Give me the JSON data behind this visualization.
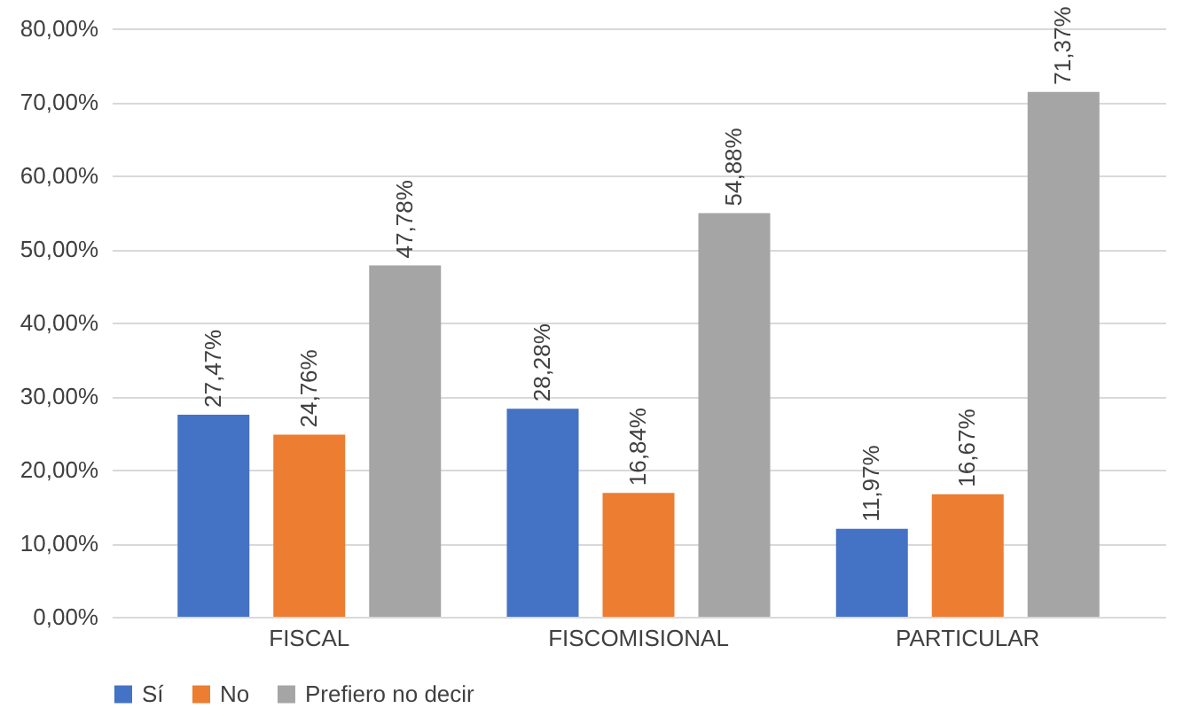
{
  "chart_data": {
    "type": "bar",
    "categories": [
      "FISCAL",
      "FISCOMISIONAL",
      "PARTICULAR"
    ],
    "series": [
      {
        "name": "Sí",
        "color": "#4472c4",
        "values": [
          27.47,
          28.28,
          11.97
        ],
        "value_labels": [
          "27,47%",
          "28,28%",
          "11,97%"
        ]
      },
      {
        "name": "No",
        "color": "#ed7d31",
        "values": [
          24.76,
          16.84,
          16.67
        ],
        "value_labels": [
          "24,76%",
          "16,84%",
          "16,67%"
        ]
      },
      {
        "name": "Prefiero no decir",
        "color": "#a5a5a5",
        "values": [
          47.78,
          54.88,
          71.37
        ],
        "value_labels": [
          "47,78%",
          "54,88%",
          "71,37%"
        ]
      }
    ],
    "ylim": [
      0,
      80
    ],
    "yticks": [
      {
        "value": 0,
        "label": "0,00%"
      },
      {
        "value": 10,
        "label": "10,00%"
      },
      {
        "value": 20,
        "label": "20,00%"
      },
      {
        "value": 30,
        "label": "30,00%"
      },
      {
        "value": 40,
        "label": "40,00%"
      },
      {
        "value": 50,
        "label": "50,00%"
      },
      {
        "value": 60,
        "label": "60,00%"
      },
      {
        "value": 70,
        "label": "70,00%"
      },
      {
        "value": 80,
        "label": "80,00%"
      }
    ],
    "grid": "y",
    "legend": "bottom"
  }
}
